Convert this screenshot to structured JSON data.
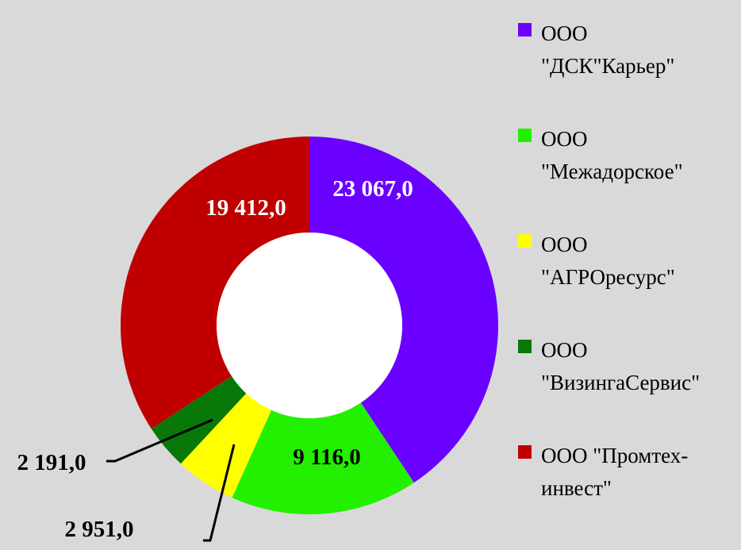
{
  "chart_data": {
    "type": "donut",
    "title": "",
    "categories": [
      "ООО \"ДСК\"Карьер\"",
      "ООО \"Межадорское\"",
      "ООО \"АГРОресурс\"",
      "ООО \"ВизингаСервис\"",
      "ООО \"Промтех-инвест\""
    ],
    "values": [
      23067.0,
      9116.0,
      2951.0,
      2191.0,
      19412.0
    ],
    "value_labels": [
      "23 067,0",
      "9 116,0",
      "2 951,0",
      "2 191,0",
      "19 412,0"
    ],
    "colors": [
      "#6a00ff",
      "#22f000",
      "#ffff00",
      "#087808",
      "#c00000"
    ],
    "legend_position": "right"
  },
  "legend": {
    "lines": [
      [
        "ООО",
        "\"ДСК\"Карьер\""
      ],
      [
        "ООО",
        "\"Межадорское\""
      ],
      [
        "ООО",
        "\"АГРОресурс\""
      ],
      [
        "ООО",
        "\"ВизингаСервис\""
      ],
      [
        "ООО \"Промтех-",
        "инвест\""
      ]
    ]
  }
}
